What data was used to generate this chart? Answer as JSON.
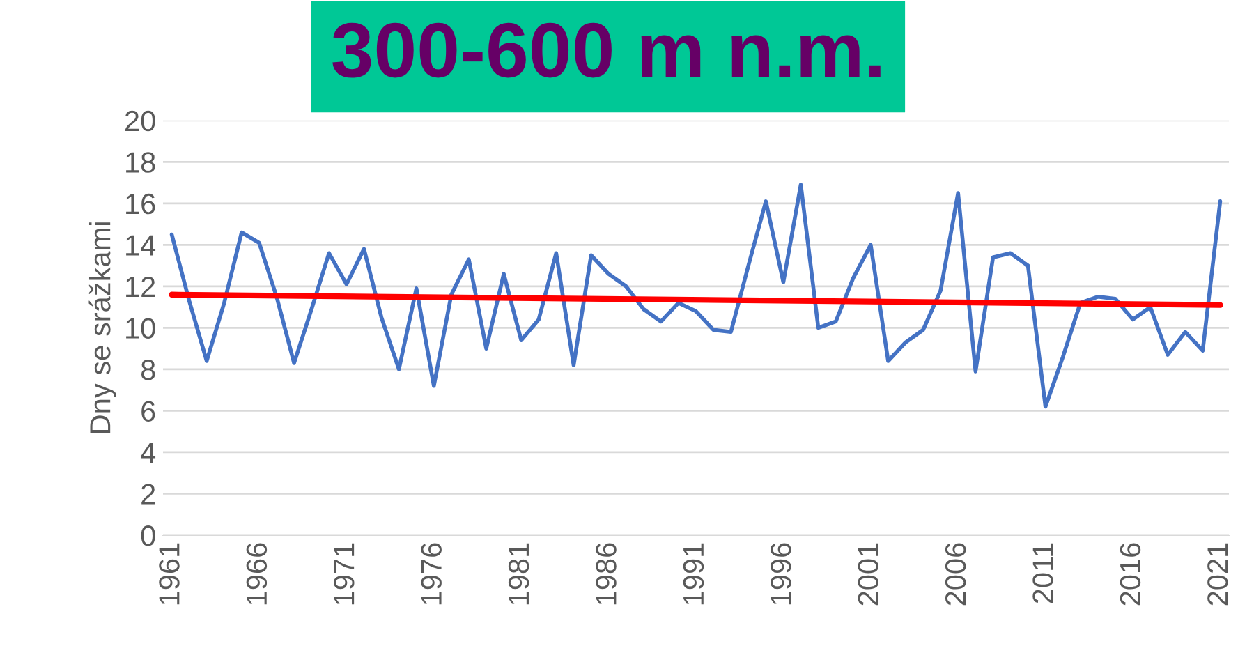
{
  "chart_data": {
    "type": "line",
    "title": "300-600 m n.m.",
    "ylabel": "Dny se srážkami",
    "x": [
      1961,
      1962,
      1963,
      1964,
      1965,
      1966,
      1967,
      1968,
      1969,
      1970,
      1971,
      1972,
      1973,
      1974,
      1975,
      1976,
      1977,
      1978,
      1979,
      1980,
      1981,
      1982,
      1983,
      1984,
      1985,
      1986,
      1987,
      1988,
      1989,
      1990,
      1991,
      1992,
      1993,
      1994,
      1995,
      1996,
      1997,
      1998,
      1999,
      2000,
      2001,
      2002,
      2003,
      2004,
      2005,
      2006,
      2007,
      2008,
      2009,
      2010,
      2011,
      2012,
      2013,
      2014,
      2015,
      2016,
      2017,
      2018,
      2019,
      2020,
      2021
    ],
    "series": [
      {
        "color": "#4472c4",
        "values": [
          14.5,
          11.3,
          8.4,
          11.2,
          14.6,
          14.1,
          11.5,
          8.3,
          10.9,
          13.6,
          12.1,
          13.8,
          10.5,
          8.0,
          11.9,
          7.2,
          11.6,
          13.3,
          9.0,
          12.6,
          9.4,
          10.4,
          13.6,
          8.2,
          13.5,
          12.6,
          12.0,
          10.9,
          10.3,
          11.2,
          10.8,
          9.9,
          9.8,
          13.0,
          16.1,
          12.2,
          16.9,
          10.0,
          10.3,
          12.4,
          14.0,
          8.4,
          9.3,
          9.9,
          11.8,
          16.5,
          7.9,
          13.4,
          13.6,
          13.0,
          6.2,
          8.6,
          11.2,
          11.5,
          11.4,
          10.4,
          11.0,
          8.7,
          9.8,
          8.9,
          16.1
        ]
      },
      {
        "type": "line",
        "color": "#ff0000",
        "x": [
          1961,
          2021
        ],
        "values": [
          11.6,
          11.1
        ]
      }
    ],
    "xlim": [
      1960.5,
      2021.5
    ],
    "xticks": [
      1961,
      1966,
      1971,
      1976,
      1981,
      1986,
      1991,
      1996,
      2001,
      2006,
      2011,
      2016,
      2021
    ],
    "ylim": [
      0,
      20
    ],
    "yticks": [
      0,
      2,
      4,
      6,
      8,
      10,
      12,
      14,
      16,
      18,
      20
    ],
    "grid": "y",
    "marker": "none",
    "line_style": "solid"
  }
}
